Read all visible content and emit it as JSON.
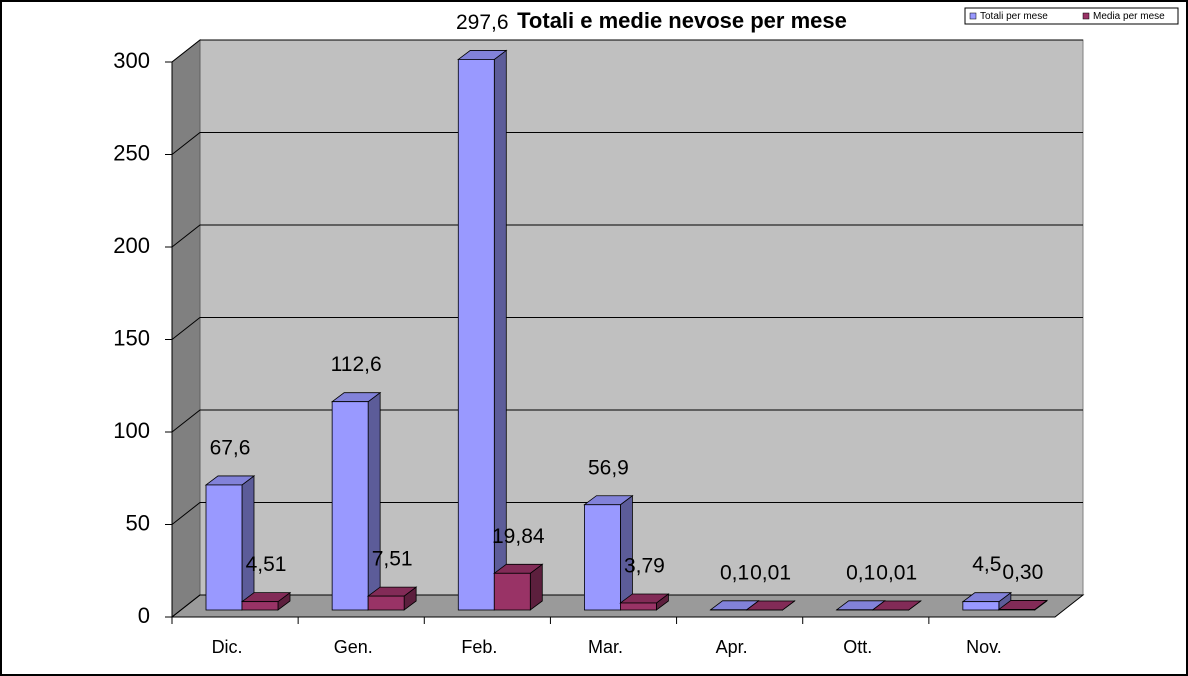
{
  "chart_data": {
    "type": "bar3d",
    "title": "Totali e medie nevose per mese",
    "categories": [
      "Dic.",
      "Gen.",
      "Feb.",
      "Mar.",
      "Apr.",
      "Ott.",
      "Nov."
    ],
    "series": [
      {
        "name": "Totali per mese",
        "color": "#9999ff",
        "values": [
          67.6,
          112.6,
          297.6,
          56.9,
          0.1,
          0.1,
          4.5
        ],
        "value_labels": [
          "67,6",
          "112,6",
          "297,6",
          "56,9",
          "0,1",
          "0,1",
          "4,5"
        ]
      },
      {
        "name": "Media per mese",
        "color": "#993366",
        "values": [
          4.51,
          7.51,
          19.84,
          3.79,
          0.01,
          0.01,
          0.3
        ],
        "value_labels": [
          "4,51",
          "7,51",
          "19,84",
          "3,79",
          "0,01",
          "0,01",
          "0,30"
        ]
      }
    ],
    "ylim": [
      0,
      300
    ],
    "yticks": [
      0,
      50,
      100,
      150,
      200,
      250,
      300
    ],
    "grid": true,
    "legend": "top-right"
  }
}
